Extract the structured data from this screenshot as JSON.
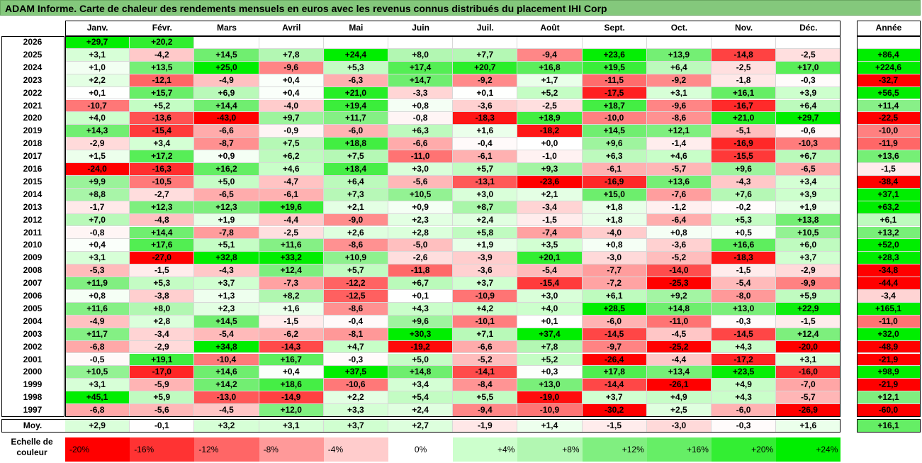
{
  "title": "ADAM Informe. Carte de chaleur des rendements mensuels en euros avec les revenus connus distribués du placement IHI Corp",
  "chart_data": {
    "type": "heatmap",
    "columns": [
      "Janv.",
      "Févr.",
      "Mars",
      "Avril",
      "Mai",
      "Juin",
      "Juil.",
      "Août",
      "Sept.",
      "Oct.",
      "Nov.",
      "Déc."
    ],
    "annual_header": "Année",
    "rows": [
      {
        "year": "2026",
        "values": [
          "+29,7",
          "+20,2",
          "",
          "",
          "",
          "",
          "",
          "",
          "",
          "",
          "",
          ""
        ],
        "annual": ""
      },
      {
        "year": "2025",
        "values": [
          "+3,1",
          "-4,2",
          "+14,5",
          "+7,8",
          "+24,4",
          "+8,0",
          "+7,7",
          "-9,4",
          "+23,6",
          "+13,9",
          "-14,8",
          "-2,5"
        ],
        "annual": "+86,4"
      },
      {
        "year": "2024",
        "values": [
          "+1,0",
          "+13,5",
          "+25,0",
          "-9,6",
          "+5,3",
          "+17,4",
          "+20,7",
          "+16,8",
          "+19,5",
          "+6,4",
          "-2,5",
          "+17,0"
        ],
        "annual": "+224,6"
      },
      {
        "year": "2023",
        "values": [
          "+2,2",
          "-12,1",
          "-4,9",
          "+0,4",
          "-6,3",
          "+14,7",
          "-9,2",
          "+1,7",
          "-11,5",
          "-9,2",
          "-1,8",
          "-0,3"
        ],
        "annual": "-32,7"
      },
      {
        "year": "2022",
        "values": [
          "+0,1",
          "+15,7",
          "+6,9",
          "+0,4",
          "+21,0",
          "-3,3",
          "+0,1",
          "+5,2",
          "-17,5",
          "+3,1",
          "+16,1",
          "+3,9"
        ],
        "annual": "+56,5"
      },
      {
        "year": "2021",
        "values": [
          "-10,7",
          "+5,2",
          "+14,4",
          "-4,0",
          "+19,4",
          "+0,8",
          "-3,6",
          "-2,5",
          "+18,7",
          "-9,6",
          "-16,7",
          "+6,4"
        ],
        "annual": "+11,4"
      },
      {
        "year": "2020",
        "values": [
          "+4,0",
          "-13,6",
          "-43,0",
          "+9,7",
          "+11,7",
          "-0,8",
          "-18,3",
          "+18,9",
          "-10,0",
          "-8,6",
          "+21,0",
          "+29,7"
        ],
        "annual": "-22,5"
      },
      {
        "year": "2019",
        "values": [
          "+14,3",
          "-15,4",
          "-6,6",
          "-0,9",
          "-6,0",
          "+6,3",
          "+1,6",
          "-18,2",
          "+14,5",
          "+12,1",
          "-5,1",
          "-0,6"
        ],
        "annual": "-10,0"
      },
      {
        "year": "2018",
        "values": [
          "-2,9",
          "+3,4",
          "-8,7",
          "+7,5",
          "+18,8",
          "-6,6",
          "-0,4",
          "+0,0",
          "+9,6",
          "-1,4",
          "-16,9",
          "-10,3"
        ],
        "annual": "-11,9"
      },
      {
        "year": "2017",
        "values": [
          "+1,5",
          "+17,2",
          "+0,9",
          "+6,2",
          "+7,5",
          "-11,0",
          "-6,1",
          "-1,0",
          "+6,3",
          "+4,6",
          "-15,5",
          "+6,7"
        ],
        "annual": "+13,6"
      },
      {
        "year": "2016",
        "values": [
          "-24,0",
          "-16,3",
          "+16,2",
          "+4,6",
          "+18,4",
          "+3,0",
          "+5,7",
          "+9,3",
          "-6,1",
          "-5,7",
          "+9,6",
          "-6,5"
        ],
        "annual": "-1,5"
      },
      {
        "year": "2015",
        "values": [
          "+9,9",
          "-10,5",
          "+5,0",
          "-4,7",
          "+6,4",
          "-5,6",
          "-13,1",
          "-23,6",
          "-16,9",
          "+13,6",
          "-4,3",
          "+3,4"
        ],
        "annual": "-38,4"
      },
      {
        "year": "2014",
        "values": [
          "+8,8",
          "-2,7",
          "-6,5",
          "-6,1",
          "+7,3",
          "+10,5",
          "+3,0",
          "+2,1",
          "+15,0",
          "-7,6",
          "+7,6",
          "+3,9"
        ],
        "annual": "+37,1"
      },
      {
        "year": "2013",
        "values": [
          "-1,7",
          "+12,3",
          "+12,3",
          "+19,6",
          "+2,1",
          "+0,9",
          "+8,7",
          "-3,4",
          "+1,8",
          "-1,2",
          "-0,2",
          "+1,9"
        ],
        "annual": "+63,2"
      },
      {
        "year": "2012",
        "values": [
          "+7,0",
          "-4,8",
          "+1,9",
          "-4,4",
          "-9,0",
          "+2,3",
          "+2,4",
          "-1,5",
          "+1,8",
          "-6,4",
          "+5,3",
          "+13,8"
        ],
        "annual": "+6,1"
      },
      {
        "year": "2011",
        "values": [
          "-0,8",
          "+14,4",
          "-7,8",
          "-2,5",
          "+2,6",
          "+2,8",
          "+5,8",
          "-7,4",
          "-4,0",
          "+0,8",
          "+0,5",
          "+10,5"
        ],
        "annual": "+13,2"
      },
      {
        "year": "2010",
        "values": [
          "+0,4",
          "+17,6",
          "+5,1",
          "+11,6",
          "-8,6",
          "-5,0",
          "+1,9",
          "+3,5",
          "+0,8",
          "-3,6",
          "+16,6",
          "+6,0"
        ],
        "annual": "+52,0"
      },
      {
        "year": "2009",
        "values": [
          "+3,1",
          "-27,0",
          "+32,8",
          "+33,2",
          "+10,9",
          "-2,6",
          "-3,9",
          "+20,1",
          "-3,0",
          "-5,2",
          "-18,3",
          "+3,7"
        ],
        "annual": "+28,3"
      },
      {
        "year": "2008",
        "values": [
          "-5,3",
          "-1,5",
          "-4,3",
          "+12,4",
          "+5,7",
          "-11,8",
          "-3,6",
          "-5,4",
          "-7,7",
          "-14,0",
          "-1,5",
          "-2,9"
        ],
        "annual": "-34,8"
      },
      {
        "year": "2007",
        "values": [
          "+11,9",
          "+5,3",
          "+3,7",
          "-7,3",
          "-12,2",
          "+6,7",
          "+3,7",
          "-15,4",
          "-7,2",
          "-25,3",
          "-5,4",
          "-9,9"
        ],
        "annual": "-44,4"
      },
      {
        "year": "2006",
        "values": [
          "+0,8",
          "-3,8",
          "+1,3",
          "+8,2",
          "-12,5",
          "+0,1",
          "-10,9",
          "+3,0",
          "+6,1",
          "+9,2",
          "-8,0",
          "+5,9"
        ],
        "annual": "-3,4"
      },
      {
        "year": "2005",
        "values": [
          "+11,6",
          "+8,0",
          "+2,3",
          "+1,6",
          "-8,6",
          "+4,3",
          "+4,2",
          "+4,0",
          "+28,5",
          "+14,8",
          "+13,0",
          "+22,9"
        ],
        "annual": "+165,1"
      },
      {
        "year": "2004",
        "values": [
          "-4,9",
          "+2,8",
          "+14,5",
          "-1,5",
          "-0,4",
          "+9,6",
          "-10,1",
          "+0,1",
          "-6,0",
          "-11,0",
          "-0,3",
          "-1,5"
        ],
        "annual": "-11,0"
      },
      {
        "year": "2003",
        "values": [
          "+11,7",
          "-3,4",
          "-5,4",
          "-6,2",
          "-8,1",
          "+30,3",
          "+7,1",
          "+37,4",
          "-14,5",
          "-4,5",
          "-14,5",
          "+12,4"
        ],
        "annual": "+32,0"
      },
      {
        "year": "2002",
        "values": [
          "-6,8",
          "-2,9",
          "+34,8",
          "-14,3",
          "+4,7",
          "-19,2",
          "-6,6",
          "+7,8",
          "-9,7",
          "-25,2",
          "+4,3",
          "-20,0"
        ],
        "annual": "-48,9"
      },
      {
        "year": "2001",
        "values": [
          "-0,5",
          "+19,1",
          "-10,4",
          "+16,7",
          "-0,3",
          "+5,0",
          "-5,2",
          "+5,2",
          "-26,4",
          "-4,4",
          "-17,2",
          "+3,1"
        ],
        "annual": "-21,9"
      },
      {
        "year": "2000",
        "values": [
          "+10,5",
          "-17,0",
          "+14,6",
          "+0,4",
          "+37,5",
          "+14,8",
          "-14,1",
          "+0,3",
          "+17,8",
          "+13,4",
          "+23,5",
          "-16,0"
        ],
        "annual": "+98,9"
      },
      {
        "year": "1999",
        "values": [
          "+3,1",
          "-5,9",
          "+14,2",
          "+18,6",
          "-10,6",
          "+3,4",
          "-8,4",
          "+13,0",
          "-14,4",
          "-26,1",
          "+4,9",
          "-7,0"
        ],
        "annual": "-21,9"
      },
      {
        "year": "1998",
        "values": [
          "+45,1",
          "+5,9",
          "-13,0",
          "-14,9",
          "+2,2",
          "+5,4",
          "+5,5",
          "-19,0",
          "+3,7",
          "+4,9",
          "+4,3",
          "-5,7"
        ],
        "annual": "+12,1"
      },
      {
        "year": "1997",
        "values": [
          "-6,8",
          "-5,6",
          "-4,5",
          "+12,0",
          "+3,3",
          "+2,4",
          "-9,4",
          "-10,9",
          "-30,2",
          "+2,5",
          "-6,0",
          "-26,9"
        ],
        "annual": "-60,0"
      }
    ],
    "average": {
      "label": "Moy.",
      "values": [
        "+2,9",
        "-0,1",
        "+3,2",
        "+3,1",
        "+3,7",
        "+2,7",
        "-1,9",
        "+1,4",
        "-1,5",
        "-3,0",
        "-0,3",
        "+1,6"
      ],
      "annual": "+16,1"
    },
    "color_scale": {
      "label": "Echelle de couleur",
      "stops": [
        {
          "label": "-20%",
          "value": -20,
          "color": "#ff0000"
        },
        {
          "label": "-16%",
          "value": -16,
          "color": "#ff3333"
        },
        {
          "label": "-12%",
          "value": -12,
          "color": "#ff6666"
        },
        {
          "label": "-8%",
          "value": -8,
          "color": "#ff9999"
        },
        {
          "label": "-4%",
          "value": -4,
          "color": "#ffcccc"
        },
        {
          "label": "0%",
          "value": 0,
          "color": "#ffffff"
        },
        {
          "label": "+4%",
          "value": 4,
          "color": "#ccffcc"
        },
        {
          "label": "+8%",
          "value": 8,
          "color": "#b2f7b2"
        },
        {
          "label": "+12%",
          "value": 12,
          "color": "#80ef80"
        },
        {
          "label": "+16%",
          "value": 16,
          "color": "#66ee66"
        },
        {
          "label": "+20%",
          "value": 20,
          "color": "#33ee33"
        },
        {
          "label": "+24%",
          "value": 24,
          "color": "#00ee00"
        }
      ]
    }
  }
}
